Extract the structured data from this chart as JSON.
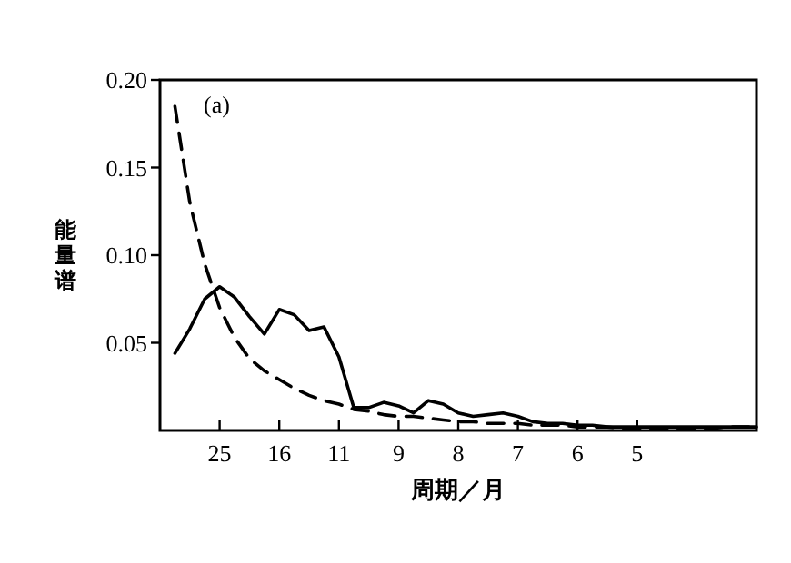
{
  "chart_data": {
    "type": "line",
    "xlabel": "周期／月",
    "ylabel": "能量谱",
    "annotations": [
      "(a)"
    ],
    "categories": [
      null,
      null,
      null,
      null,
      "25",
      null,
      null,
      null,
      "16",
      null,
      null,
      null,
      "11",
      null,
      null,
      null,
      "9",
      null,
      null,
      null,
      "8",
      null,
      null,
      null,
      "7",
      null,
      null,
      null,
      "6",
      null,
      null,
      null,
      "5",
      null,
      null,
      null,
      null,
      null,
      null,
      null,
      null
    ],
    "ylim": [
      0,
      0.2
    ],
    "yticks": [
      0.05,
      {
        "value": 0.1,
        "label": "0.10"
      },
      0.15,
      {
        "value": 0.2,
        "label": "0.20"
      }
    ],
    "grid": false,
    "marker": "none",
    "series": [
      {
        "color": "#000000",
        "line_style": "solid",
        "values": [
          null,
          0.044,
          0.058,
          0.075,
          0.082,
          0.076,
          0.065,
          0.055,
          0.069,
          0.066,
          0.057,
          0.059,
          0.042,
          0.013,
          0.013,
          0.016,
          0.014,
          0.01,
          0.017,
          0.015,
          0.01,
          0.008,
          0.009,
          0.01,
          0.008,
          0.005,
          0.004,
          0.004,
          0.003,
          0.003,
          0.002,
          0.002,
          0.002,
          0.002,
          0.002,
          0.002,
          0.002,
          0.002,
          0.002,
          0.002,
          0.002
        ]
      },
      {
        "color": "#000000",
        "line_style": "dashed",
        "values": [
          null,
          0.185,
          0.13,
          0.095,
          0.07,
          0.053,
          0.041,
          0.034,
          0.029,
          0.024,
          0.02,
          0.017,
          0.015,
          0.012,
          0.011,
          0.009,
          0.008,
          0.008,
          0.007,
          0.006,
          0.005,
          0.005,
          0.004,
          0.004,
          0.004,
          0.003,
          0.003,
          0.003,
          0.002,
          0.002,
          0.002,
          0.001,
          0.001,
          0.001,
          0.001,
          0.001,
          0.001,
          0.001,
          0.002,
          0.002,
          0.002
        ]
      }
    ]
  }
}
